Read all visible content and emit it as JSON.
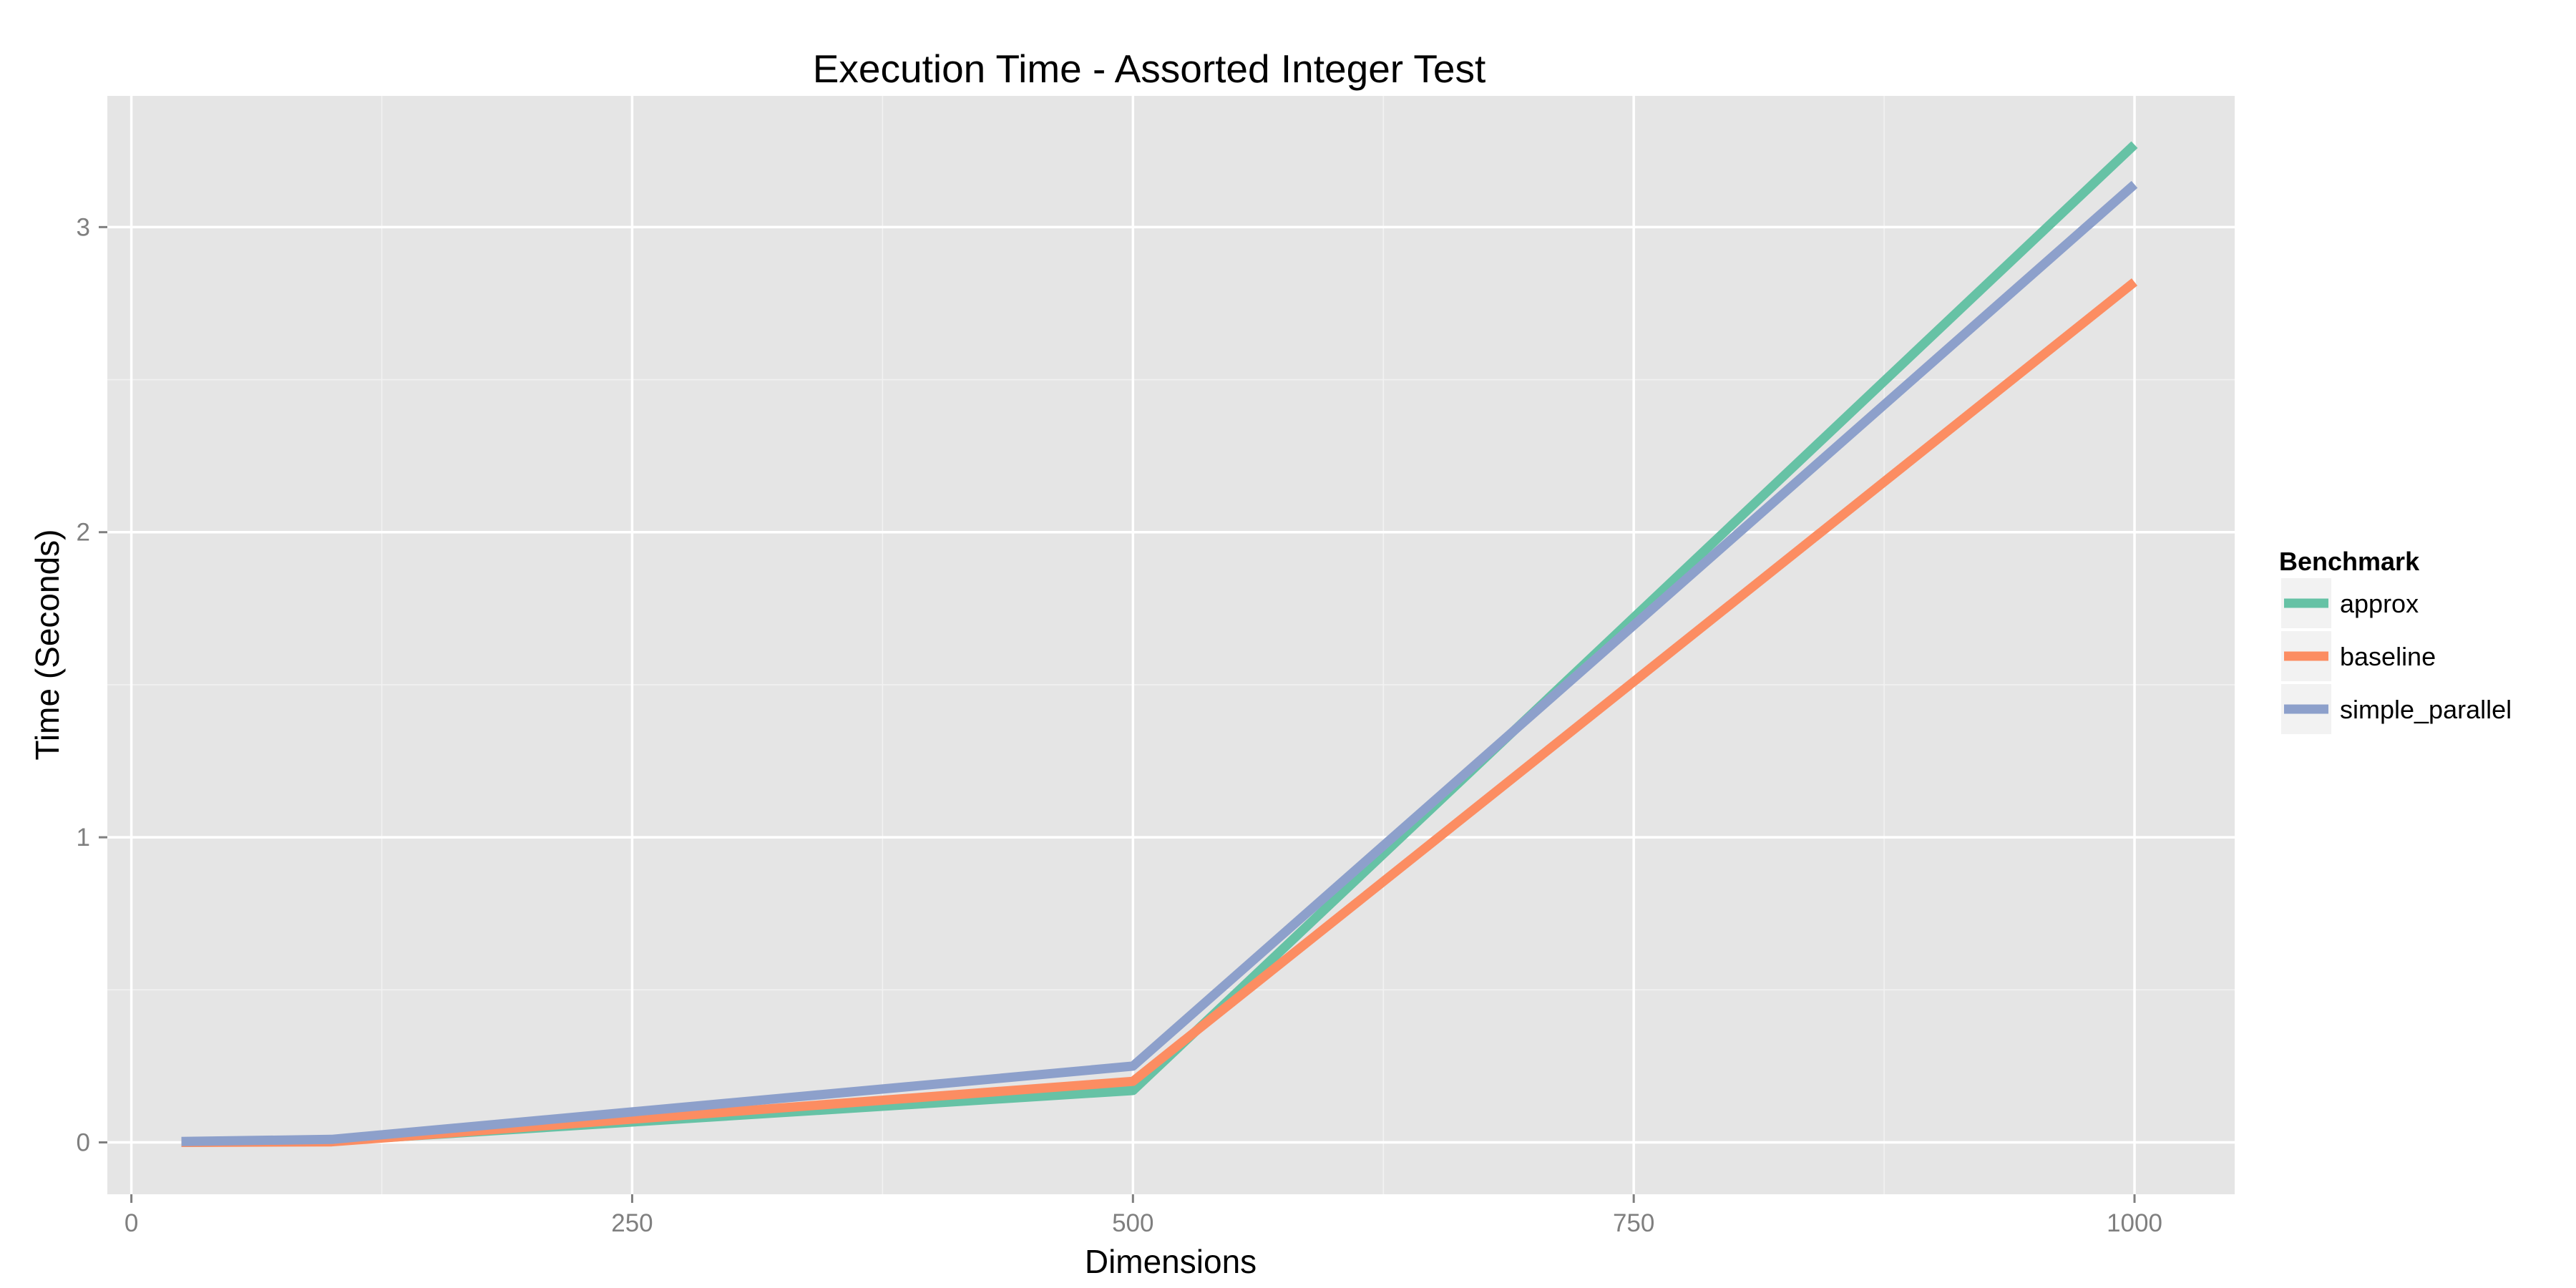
{
  "chart_data": {
    "type": "line",
    "title": "Execution Time - Assorted Integer Test",
    "xlabel": "Dimensions",
    "ylabel": "Time (Seconds)",
    "xlim": [
      -12,
      1050
    ],
    "ylim": [
      -0.17,
      3.43
    ],
    "x_ticks": [
      0,
      250,
      500,
      750,
      1000
    ],
    "x_tick_labels": [
      "0",
      "250",
      "500",
      "750",
      "1000"
    ],
    "y_ticks": [
      0,
      1,
      2,
      3
    ],
    "y_tick_labels": [
      "0",
      "1",
      "2",
      "3"
    ],
    "grid": true,
    "legend": {
      "title": "Benchmark",
      "position": "right"
    },
    "x": [
      25,
      100,
      500,
      1000
    ],
    "series": [
      {
        "name": "approx",
        "color": "#66c2a5",
        "values": [
          0.0,
          0.005,
          0.17,
          3.27
        ]
      },
      {
        "name": "baseline",
        "color": "#fc8d62",
        "values": [
          0.0,
          0.002,
          0.2,
          2.82
        ]
      },
      {
        "name": "simple_parallel",
        "color": "#8da0cb",
        "values": [
          0.003,
          0.01,
          0.25,
          3.14
        ]
      }
    ]
  }
}
